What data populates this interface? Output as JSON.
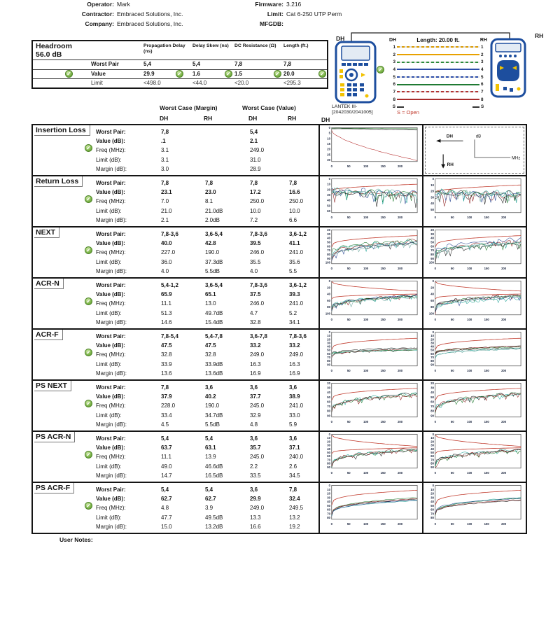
{
  "header": {
    "left": [
      {
        "label": "Operator:",
        "value": "Mark"
      },
      {
        "label": "Contractor:",
        "value": "Embraced Solutions, Inc."
      },
      {
        "label": "Company:",
        "value": "Embraced Solutions, Inc."
      }
    ],
    "right": [
      {
        "label": "Firmware:",
        "value": "3.216"
      },
      {
        "label": "Limit:",
        "value": "Cat 6-250 UTP Perm"
      },
      {
        "label": "MFGDB:",
        "value": ""
      }
    ]
  },
  "icons": {
    "pass": "✓"
  },
  "colors": {
    "pass_green": "#76b043",
    "limit_red": "#c0392b",
    "device_blue": "#1d4e9e",
    "note_red": "#c0392b"
  },
  "headroom": {
    "title": "Headroom",
    "headroom_value": "56.0 dB",
    "columns": [
      "Propagation Delay (ns)",
      "Delay Skew (ns)",
      "DC Resistance (Ω)",
      "Length (ft.)"
    ],
    "rows": [
      {
        "label": "Worst Pair",
        "values": [
          "5,4",
          "5,4",
          "7,8",
          "7,8"
        ],
        "pass": false
      },
      {
        "label": "Value",
        "values": [
          "29.9",
          "1.6",
          "1.5",
          "20.0"
        ],
        "pass": true
      },
      {
        "label": "Limit",
        "values": [
          "<498.0",
          "<44.0",
          "<20.0",
          "<295.3"
        ],
        "pass": false
      }
    ]
  },
  "wiremap": {
    "dh_label": "DH",
    "rh_label": "RH",
    "length_label": "Length: 20.00 ft.",
    "device_name": "LANTEK III-",
    "device_serial": "[2042030/2041005]",
    "shield_note": "S = Open",
    "pins": [
      {
        "num": "1",
        "style": "dashed",
        "color": "#d99a00"
      },
      {
        "num": "2",
        "style": "solid",
        "color": "#e8a100"
      },
      {
        "num": "3",
        "style": "dashed",
        "color": "#2e8b3a"
      },
      {
        "num": "4",
        "style": "solid",
        "color": "#2b4ba8"
      },
      {
        "num": "5",
        "style": "dashed",
        "color": "#2b4ba8"
      },
      {
        "num": "6",
        "style": "solid",
        "color": "#1f7a33"
      },
      {
        "num": "7",
        "style": "dashed",
        "color": "#b23333"
      },
      {
        "num": "8",
        "style": "solid",
        "color": "#a62b2b"
      },
      {
        "num": "S",
        "style": "stub",
        "color": "#333333"
      }
    ]
  },
  "results": {
    "col_groups": [
      "Worst Case (Margin)",
      "Worst Case (Value)"
    ],
    "col_headers": [
      "DH",
      "RH",
      "DH",
      "RH"
    ],
    "graph_col_header": "DH",
    "row_labels": [
      "Worst Pair:",
      "Value (dB):",
      "Freq (MHz):",
      "Limit (dB):",
      "Margin (dB):"
    ],
    "sections": [
      {
        "name": "Insertion Loss",
        "pass": true,
        "rows": [
          [
            "7,8",
            "",
            "5,4",
            ""
          ],
          [
            ".1",
            "",
            "2.1",
            ""
          ],
          [
            "3.1",
            "",
            "249.0",
            ""
          ],
          [
            "3.1",
            "",
            "31.0",
            ""
          ],
          [
            "3.0",
            "",
            "28.9",
            ""
          ]
        ]
      },
      {
        "name": "Return Loss",
        "pass": true,
        "rows": [
          [
            "7,8",
            "7,8",
            "7,8",
            "7,8"
          ],
          [
            "23.1",
            "23.0",
            "17.2",
            "16.6"
          ],
          [
            "7.0",
            "8.1",
            "250.0",
            "250.0"
          ],
          [
            "21.0",
            "21.0dB",
            "10.0",
            "10.0"
          ],
          [
            "2.1",
            "2.0dB",
            "7.2",
            "6.6"
          ]
        ]
      },
      {
        "name": "NEXT",
        "pass": true,
        "rows": [
          [
            "7,8-3,6",
            "3,6-5,4",
            "7,8-3,6",
            "3,6-1,2"
          ],
          [
            "40.0",
            "42.8",
            "39.5",
            "41.1"
          ],
          [
            "227.0",
            "190.0",
            "246.0",
            "241.0"
          ],
          [
            "36.0",
            "37.3dB",
            "35.5",
            "35.6"
          ],
          [
            "4.0",
            "5.5dB",
            "4.0",
            "5.5"
          ]
        ]
      },
      {
        "name": "ACR-N",
        "pass": true,
        "rows": [
          [
            "5,4-1,2",
            "3,6-5,4",
            "7,8-3,6",
            "3,6-1,2"
          ],
          [
            "65.9",
            "65.1",
            "37.5",
            "39.3"
          ],
          [
            "11.1",
            "13.0",
            "246.0",
            "241.0"
          ],
          [
            "51.3",
            "49.7dB",
            "4.7",
            "5.2"
          ],
          [
            "14.6",
            "15.4dB",
            "32.8",
            "34.1"
          ]
        ]
      },
      {
        "name": "ACR-F",
        "pass": true,
        "rows": [
          [
            "7,8-5,4",
            "5,4-7,8",
            "3,6-7,8",
            "7,8-3,6"
          ],
          [
            "47.5",
            "47.5",
            "33.2",
            "33.2"
          ],
          [
            "32.8",
            "32.8",
            "249.0",
            "249.0"
          ],
          [
            "33.9",
            "33.9dB",
            "16.3",
            "16.3"
          ],
          [
            "13.6",
            "13.6dB",
            "16.9",
            "16.9"
          ]
        ]
      },
      {
        "name": "PS NEXT",
        "pass": true,
        "rows": [
          [
            "7,8",
            "3,6",
            "3,6",
            "3,6"
          ],
          [
            "37.9",
            "40.2",
            "37.7",
            "38.9"
          ],
          [
            "228.0",
            "190.0",
            "245.0",
            "241.0"
          ],
          [
            "33.4",
            "34.7dB",
            "32.9",
            "33.0"
          ],
          [
            "4.5",
            "5.5dB",
            "4.8",
            "5.9"
          ]
        ]
      },
      {
        "name": "PS ACR-N",
        "pass": true,
        "rows": [
          [
            "5,4",
            "5,4",
            "3,6",
            "3,6"
          ],
          [
            "63.7",
            "63.1",
            "35.7",
            "37.1"
          ],
          [
            "11.1",
            "13.9",
            "245.0",
            "240.0"
          ],
          [
            "49.0",
            "46.6dB",
            "2.2",
            "2.6"
          ],
          [
            "14.7",
            "16.5dB",
            "33.5",
            "34.5"
          ]
        ]
      },
      {
        "name": "PS ACR-F",
        "pass": true,
        "rows": [
          [
            "5,4",
            "5,4",
            "3,6",
            "7,8"
          ],
          [
            "62.7",
            "62.7",
            "29.9",
            "32.4"
          ],
          [
            "4.8",
            "3.9",
            "249.0",
            "249.5"
          ],
          [
            "47.7",
            "49.5dB",
            "13.3",
            "13.2"
          ],
          [
            "15.0",
            "13.2dB",
            "16.6",
            "19.2"
          ]
        ]
      }
    ]
  },
  "user_notes_label": "User Notes:",
  "chart_data": [
    {
      "section": "Insertion Loss",
      "type": "line",
      "xlabel": "MHz",
      "ylabel": "dB",
      "graphs": [
        "DH"
      ],
      "x_ticks": [
        0,
        50,
        100,
        150,
        200
      ],
      "x_max": 250,
      "y_ticks": [
        0,
        5,
        10,
        15,
        20,
        25,
        30
      ],
      "y_max": 31.5,
      "limit_curves": [],
      "lines": [
        {
          "color": "#b22222",
          "start": 2.5,
          "end": 30.5,
          "pow": 0.62,
          "noise": 0.2,
          "spike": 0
        },
        {
          "color": "#3a3a3a",
          "start": 0.7,
          "end": 1.6,
          "pow": 1,
          "noise": 0.15,
          "spike": 0
        },
        {
          "color": "#2e7d32",
          "start": 0.4,
          "end": 1.0,
          "pow": 1,
          "noise": 0.1,
          "spike": 0
        },
        {
          "color": "#8a8a8a",
          "start": 1.1,
          "end": 2.2,
          "pow": 1,
          "noise": 0.15,
          "spike": 0
        }
      ],
      "legend_panel": {
        "dh": "DH",
        "db": "dB",
        "mhz": "MHz",
        "rh": "RH"
      }
    },
    {
      "section": "Return Loss",
      "type": "line",
      "graphs": [
        "DH",
        "RH"
      ],
      "x_ticks": [
        0,
        50,
        100,
        150,
        200
      ],
      "x_max": 250,
      "y_ticks": [
        0,
        10,
        20,
        30,
        40,
        50,
        60
      ],
      "y_max": 63,
      "y_ticks_rh": [
        0,
        10,
        20,
        30,
        40,
        50
      ],
      "y_max_rh": 55,
      "limit_curves": [
        {
          "start": 21,
          "end": 10,
          "pow": 0.55
        }
      ],
      "traces": {
        "colors": [
          "#8b1a1a",
          "#1e7a2e",
          "#22418f",
          "#1fa396",
          "#1a1a1a",
          "#6fa8a0"
        ],
        "start": [
          20,
          27
        ],
        "end": [
          24,
          32
        ],
        "pow": 0.8,
        "noise": 6.5,
        "spike": 18
      }
    },
    {
      "section": "NEXT",
      "type": "line",
      "graphs": [
        "DH",
        "RH"
      ],
      "x_ticks": [
        0,
        50,
        100,
        150,
        200
      ],
      "x_max": 250,
      "y_ticks": [
        20,
        30,
        40,
        50,
        60,
        70,
        80,
        90,
        100
      ],
      "y_min": 20,
      "y_max": 103,
      "limit_curves": [
        {
          "start": 62,
          "end": 34,
          "pow": 0.3
        }
      ],
      "traces": {
        "colors": [
          "#8b1a1a",
          "#1e7a2e",
          "#22418f",
          "#1fa396",
          "#1a1a1a",
          "#6fa8a0"
        ],
        "start": [
          78,
          96
        ],
        "end": [
          42,
          55
        ],
        "pow": 0.3,
        "noise": 4.5,
        "spike": 13
      }
    },
    {
      "section": "ACR-N",
      "type": "line",
      "graphs": [
        "DH",
        "RH"
      ],
      "x_ticks": [
        0,
        50,
        100,
        150,
        200
      ],
      "x_max": 250,
      "y_ticks": [
        0,
        20,
        40,
        60,
        80,
        100
      ],
      "y_max": 104,
      "limit_curves": [
        {
          "start": 2,
          "end": 31,
          "pow": 0.5
        },
        {
          "start": 55,
          "end": 40,
          "pow": 0.3
        }
      ],
      "traces": {
        "colors": [
          "#8b1a1a",
          "#1e7a2e",
          "#22418f",
          "#1fa396",
          "#1a1a1a",
          "#6fa8a0"
        ],
        "start": [
          78,
          98
        ],
        "end": [
          42,
          55
        ],
        "pow": 0.3,
        "noise": 4.5,
        "spike": 13
      }
    },
    {
      "section": "ACR-F",
      "type": "line",
      "graphs": [
        "DH",
        "RH"
      ],
      "x_ticks": [
        0,
        50,
        100,
        150,
        200
      ],
      "x_max": 250,
      "y_ticks": [
        0,
        10,
        20,
        30,
        40,
        50,
        60,
        70,
        80,
        90
      ],
      "y_max": 94,
      "limit_curves": [
        {
          "start": 49,
          "end": 17,
          "pow": 0.3
        }
      ],
      "traces": {
        "colors": [
          "#1a1a1a",
          "#2a2a2a",
          "#1fa396",
          "#1e7a2e",
          "#8b1a1a",
          "#6fa8a0"
        ],
        "start": [
          58,
          72
        ],
        "end": [
          38,
          50
        ],
        "pow": 0.3,
        "noise": 1.2,
        "spike": 3
      }
    },
    {
      "section": "PS NEXT",
      "type": "line",
      "graphs": [
        "DH",
        "RH"
      ],
      "x_ticks": [
        0,
        50,
        100,
        150,
        200
      ],
      "x_max": 250,
      "y_ticks": [
        20,
        30,
        40,
        50,
        60,
        70,
        80,
        90
      ],
      "y_min": 20,
      "y_max": 93,
      "limit_curves": [
        {
          "start": 57,
          "end": 31,
          "pow": 0.3
        }
      ],
      "traces": {
        "colors": [
          "#1e7a2e",
          "#1fa396",
          "#1a1a1a",
          "#8b1a1a"
        ],
        "start": [
          78,
          88
        ],
        "end": [
          40,
          46
        ],
        "pow": 0.3,
        "noise": 3.5,
        "spike": 9
      }
    },
    {
      "section": "PS ACR-N",
      "type": "line",
      "graphs": [
        "DH",
        "RH"
      ],
      "x_ticks": [
        0,
        50,
        100,
        150,
        200
      ],
      "x_max": 250,
      "y_ticks": [
        0,
        10,
        20,
        30,
        40,
        50,
        60,
        70,
        80,
        90
      ],
      "y_max": 93,
      "limit_curves": [
        {
          "start": 2,
          "end": 33,
          "pow": 0.5
        },
        {
          "start": 53,
          "end": 37,
          "pow": 0.3
        }
      ],
      "traces": {
        "colors": [
          "#1e7a2e",
          "#1fa396",
          "#1a1a1a",
          "#8b1a1a"
        ],
        "start": [
          82,
          90
        ],
        "end": [
          40,
          46
        ],
        "pow": 0.3,
        "noise": 3.5,
        "spike": 9
      }
    },
    {
      "section": "PS ACR-F",
      "type": "line",
      "graphs": [
        "DH",
        "RH"
      ],
      "x_ticks": [
        0,
        50,
        100,
        150,
        200
      ],
      "x_max": 250,
      "y_ticks": [
        0,
        10,
        20,
        30,
        40,
        50,
        60,
        70,
        80
      ],
      "y_max": 84,
      "limit_curves": [
        {
          "start": 49,
          "end": 12,
          "pow": 0.3
        }
      ],
      "traces": {
        "colors": [
          "#1a1a1a",
          "#1fa396",
          "#1e7a2e",
          "#22418f",
          "#8b1a1a"
        ],
        "start": [
          68,
          78
        ],
        "end": [
          30,
          38
        ],
        "pow": 0.3,
        "noise": 1,
        "spike": 0
      }
    }
  ]
}
